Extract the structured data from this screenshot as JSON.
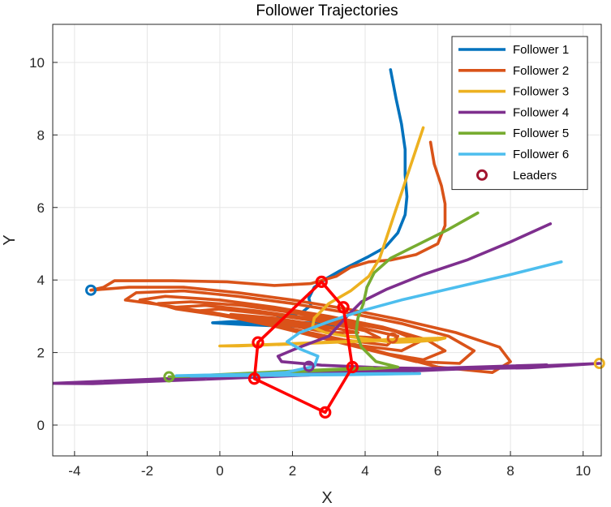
{
  "chart_data": {
    "type": "line",
    "title": "Follower Trajectories",
    "xlabel": "X",
    "ylabel": "Y",
    "xlim": [
      -4.6,
      10.5
    ],
    "ylim": [
      -0.85,
      11.05
    ],
    "xticks": [
      -4,
      -2,
      0,
      2,
      4,
      6,
      8,
      10
    ],
    "yticks": [
      0,
      2,
      4,
      6,
      8,
      10
    ],
    "grid": true,
    "legend_position": "top-right",
    "series": [
      {
        "name": "Follower 1",
        "color": "#0072BD",
        "start": [
          -3.55,
          3.72
        ],
        "points": [
          [
            4.7,
            9.8
          ],
          [
            4.85,
            9.0
          ],
          [
            5.0,
            8.3
          ],
          [
            5.1,
            7.6
          ],
          [
            5.1,
            6.9
          ],
          [
            5.15,
            6.3
          ],
          [
            5.1,
            5.8
          ],
          [
            4.9,
            5.3
          ],
          [
            4.55,
            4.9
          ],
          [
            4.1,
            4.65
          ],
          [
            3.7,
            4.45
          ],
          [
            3.3,
            4.25
          ],
          [
            2.95,
            4.05
          ],
          [
            2.6,
            3.8
          ],
          [
            2.45,
            3.5
          ],
          [
            2.5,
            3.3
          ],
          [
            2.25,
            3.1
          ],
          [
            1.6,
            2.95
          ],
          [
            0.9,
            2.85
          ],
          [
            0.3,
            2.85
          ],
          [
            -0.2,
            2.82
          ],
          [
            0.5,
            2.78
          ],
          [
            1.4,
            2.74
          ],
          [
            2.4,
            2.72
          ],
          [
            3.2,
            2.76
          ],
          [
            2.4,
            2.82
          ],
          [
            1.5,
            2.86
          ],
          [
            0.6,
            2.86
          ],
          [
            1.5,
            2.8
          ],
          [
            2.5,
            2.76
          ]
        ]
      },
      {
        "name": "Follower 2",
        "color": "#D95319",
        "start": [
          -3.55,
          3.72
        ],
        "points": [
          [
            5.8,
            7.8
          ],
          [
            5.9,
            7.2
          ],
          [
            6.1,
            6.6
          ],
          [
            6.2,
            6.1
          ],
          [
            6.2,
            5.5
          ],
          [
            6.0,
            5.0
          ],
          [
            5.4,
            4.7
          ],
          [
            4.7,
            4.55
          ],
          [
            4.1,
            4.5
          ],
          [
            3.6,
            4.35
          ],
          [
            3.2,
            4.1
          ],
          [
            2.5,
            3.9
          ],
          [
            1.5,
            3.85
          ],
          [
            0.2,
            3.95
          ],
          [
            -1.3,
            3.98
          ],
          [
            -2.9,
            3.98
          ],
          [
            -3.2,
            3.8
          ],
          [
            -3.55,
            3.72
          ],
          [
            -3.55,
            3.72
          ],
          [
            -2.5,
            3.8
          ],
          [
            -1.0,
            3.8
          ],
          [
            0.5,
            3.65
          ],
          [
            2.0,
            3.45
          ],
          [
            3.5,
            3.2
          ],
          [
            5.0,
            2.9
          ],
          [
            6.5,
            2.55
          ],
          [
            7.7,
            2.15
          ],
          [
            8.0,
            1.75
          ],
          [
            7.5,
            1.45
          ],
          [
            6.0,
            1.6
          ],
          [
            4.5,
            2.0
          ],
          [
            3.0,
            2.4
          ],
          [
            1.5,
            2.75
          ],
          [
            0.0,
            3.05
          ],
          [
            -1.5,
            3.3
          ],
          [
            -2.6,
            3.45
          ],
          [
            -2.3,
            3.65
          ],
          [
            -1.0,
            3.7
          ],
          [
            0.5,
            3.55
          ],
          [
            2.0,
            3.35
          ],
          [
            3.5,
            3.1
          ],
          [
            5.0,
            2.8
          ],
          [
            6.3,
            2.45
          ],
          [
            7.0,
            2.05
          ],
          [
            6.6,
            1.7
          ],
          [
            5.4,
            1.75
          ],
          [
            4.0,
            2.1
          ],
          [
            2.6,
            2.5
          ],
          [
            1.2,
            2.85
          ],
          [
            -0.2,
            3.1
          ],
          [
            -1.6,
            3.3
          ],
          [
            -2.2,
            3.45
          ],
          [
            -1.5,
            3.55
          ],
          [
            0.0,
            3.45
          ],
          [
            1.5,
            3.25
          ],
          [
            3.0,
            3.0
          ],
          [
            4.5,
            2.7
          ],
          [
            5.7,
            2.35
          ],
          [
            6.2,
            2.05
          ],
          [
            5.6,
            1.8
          ],
          [
            4.4,
            2.0
          ],
          [
            3.0,
            2.35
          ],
          [
            1.6,
            2.7
          ],
          [
            0.2,
            3.0
          ],
          [
            -1.2,
            3.2
          ],
          [
            -1.7,
            3.35
          ],
          [
            -0.8,
            3.4
          ],
          [
            0.6,
            3.3
          ],
          [
            2.0,
            3.1
          ],
          [
            3.4,
            2.85
          ],
          [
            4.8,
            2.6
          ],
          [
            5.5,
            2.3
          ],
          [
            5.0,
            2.05
          ],
          [
            3.8,
            2.2
          ],
          [
            2.4,
            2.55
          ],
          [
            1.0,
            2.85
          ],
          [
            -0.4,
            3.1
          ],
          [
            -1.2,
            3.25
          ],
          [
            -0.4,
            3.3
          ],
          [
            1.0,
            3.15
          ],
          [
            2.4,
            2.95
          ],
          [
            3.8,
            2.7
          ],
          [
            4.9,
            2.45
          ],
          [
            4.6,
            2.2
          ],
          [
            3.4,
            2.35
          ],
          [
            2.0,
            2.65
          ],
          [
            0.6,
            2.95
          ],
          [
            -0.6,
            3.15
          ],
          [
            0.0,
            3.2
          ],
          [
            1.4,
            3.05
          ],
          [
            2.8,
            2.85
          ],
          [
            4.0,
            2.6
          ],
          [
            4.4,
            2.4
          ],
          [
            3.5,
            2.45
          ],
          [
            2.2,
            2.7
          ],
          [
            0.9,
            2.95
          ],
          [
            0.3,
            3.05
          ],
          [
            1.5,
            2.95
          ],
          [
            2.8,
            2.75
          ],
          [
            3.8,
            2.55
          ],
          [
            3.2,
            2.55
          ],
          [
            2.0,
            2.75
          ],
          [
            1.2,
            2.9
          ],
          [
            2.2,
            2.8
          ],
          [
            3.2,
            2.65
          ],
          [
            2.5,
            2.7
          ],
          [
            2.0,
            2.75
          ]
        ]
      },
      {
        "name": "Follower 3",
        "color": "#EDB120",
        "start": [
          10.45,
          1.7
        ],
        "points": [
          [
            5.6,
            8.2
          ],
          [
            5.4,
            7.6
          ],
          [
            5.2,
            7.0
          ],
          [
            5.0,
            6.4
          ],
          [
            4.8,
            5.8
          ],
          [
            4.6,
            5.2
          ],
          [
            4.4,
            4.6
          ],
          [
            4.1,
            4.1
          ],
          [
            3.6,
            3.7
          ],
          [
            3.0,
            3.35
          ],
          [
            2.6,
            2.95
          ],
          [
            2.55,
            2.7
          ],
          [
            2.9,
            2.55
          ],
          [
            3.5,
            2.45
          ],
          [
            4.2,
            2.35
          ],
          [
            4.8,
            2.28
          ],
          [
            5.4,
            2.3
          ],
          [
            6.0,
            2.35
          ],
          [
            6.2,
            2.4
          ],
          [
            5.5,
            2.38
          ],
          [
            4.5,
            2.34
          ],
          [
            3.5,
            2.3
          ],
          [
            2.5,
            2.26
          ],
          [
            1.5,
            2.22
          ],
          [
            0.5,
            2.18
          ],
          [
            0.0,
            2.18
          ],
          [
            0.8,
            2.2
          ],
          [
            1.8,
            2.24
          ],
          [
            2.8,
            2.28
          ],
          [
            3.8,
            2.32
          ],
          [
            4.7,
            2.36
          ],
          [
            5.3,
            2.38
          ],
          [
            4.6,
            2.34
          ],
          [
            3.6,
            2.3
          ],
          [
            2.6,
            2.26
          ],
          [
            1.6,
            2.22
          ],
          [
            2.5,
            2.26
          ],
          [
            3.5,
            2.3
          ]
        ]
      },
      {
        "name": "Follower 4",
        "color": "#7E2F8E",
        "start": [
          -4.6,
          1.15
        ],
        "points": [
          [
            9.1,
            5.55
          ],
          [
            8.0,
            5.05
          ],
          [
            6.8,
            4.55
          ],
          [
            5.6,
            4.15
          ],
          [
            4.6,
            3.75
          ],
          [
            3.9,
            3.4
          ],
          [
            3.5,
            3.0
          ],
          [
            3.0,
            2.45
          ],
          [
            2.2,
            2.15
          ],
          [
            1.6,
            1.9
          ],
          [
            1.7,
            1.75
          ],
          [
            2.8,
            1.65
          ],
          [
            4.5,
            1.58
          ],
          [
            6.5,
            1.55
          ],
          [
            8.5,
            1.58
          ],
          [
            10.45,
            1.7
          ],
          [
            8.5,
            1.62
          ],
          [
            6.0,
            1.52
          ],
          [
            3.5,
            1.42
          ],
          [
            1.0,
            1.32
          ],
          [
            -1.5,
            1.22
          ],
          [
            -3.5,
            1.14
          ],
          [
            -4.6,
            1.15
          ],
          [
            -3.0,
            1.22
          ],
          [
            -0.5,
            1.32
          ],
          [
            2.0,
            1.42
          ],
          [
            4.5,
            1.52
          ],
          [
            7.0,
            1.6
          ],
          [
            9.0,
            1.66
          ],
          [
            7.0,
            1.58
          ],
          [
            4.5,
            1.48
          ],
          [
            2.0,
            1.38
          ],
          [
            -0.5,
            1.28
          ],
          [
            -2.8,
            1.2
          ],
          [
            -0.5,
            1.3
          ],
          [
            2.0,
            1.4
          ],
          [
            4.5,
            1.5
          ],
          [
            6.5,
            1.56
          ]
        ]
      },
      {
        "name": "Follower 5",
        "color": "#77AC30",
        "start": [
          -1.4,
          1.33
        ],
        "points": [
          [
            7.1,
            5.85
          ],
          [
            6.3,
            5.4
          ],
          [
            5.4,
            4.95
          ],
          [
            4.7,
            4.6
          ],
          [
            4.25,
            4.2
          ],
          [
            4.05,
            3.8
          ],
          [
            3.95,
            3.35
          ],
          [
            3.8,
            2.95
          ],
          [
            3.75,
            2.55
          ],
          [
            3.9,
            2.15
          ],
          [
            4.3,
            1.75
          ],
          [
            4.9,
            1.6
          ],
          [
            4.3,
            1.56
          ],
          [
            3.2,
            1.52
          ],
          [
            2.0,
            1.48
          ],
          [
            0.8,
            1.42
          ],
          [
            -0.4,
            1.36
          ],
          [
            -1.4,
            1.33
          ],
          [
            -0.5,
            1.37
          ],
          [
            0.8,
            1.43
          ],
          [
            2.0,
            1.49
          ],
          [
            3.2,
            1.54
          ],
          [
            4.2,
            1.58
          ],
          [
            3.2,
            1.52
          ],
          [
            2.0,
            1.47
          ]
        ]
      },
      {
        "name": "Follower 6",
        "color": "#4DBEEE",
        "start": [
          -1.4,
          1.33
        ],
        "points": [
          [
            9.4,
            4.5
          ],
          [
            8.0,
            4.15
          ],
          [
            6.5,
            3.8
          ],
          [
            5.0,
            3.45
          ],
          [
            3.9,
            3.15
          ],
          [
            3.0,
            2.85
          ],
          [
            2.2,
            2.55
          ],
          [
            1.85,
            2.3
          ],
          [
            2.2,
            2.1
          ],
          [
            2.7,
            1.9
          ],
          [
            2.6,
            1.62
          ],
          [
            1.8,
            1.45
          ],
          [
            0.8,
            1.4
          ],
          [
            -0.3,
            1.38
          ],
          [
            -1.2,
            1.36
          ],
          [
            0.5,
            1.38
          ],
          [
            2.5,
            1.4
          ],
          [
            4.5,
            1.42
          ],
          [
            5.5,
            1.42
          ],
          [
            4.0,
            1.4
          ],
          [
            2.0,
            1.38
          ],
          [
            0.0,
            1.36
          ],
          [
            -0.8,
            1.35
          ],
          [
            1.0,
            1.37
          ],
          [
            3.0,
            1.39
          ],
          [
            4.8,
            1.41
          ],
          [
            3.5,
            1.39
          ],
          [
            1.5,
            1.37
          ]
        ]
      }
    ],
    "leaders": {
      "name": "Leaders",
      "marker_color": "#A2142F",
      "points": [
        [
          2.8,
          3.95
        ],
        [
          3.4,
          3.25
        ],
        [
          3.65,
          1.6
        ],
        [
          2.9,
          0.35
        ],
        [
          0.95,
          1.28
        ],
        [
          1.05,
          2.28
        ]
      ]
    },
    "extra_markers": [
      {
        "point": [
          -3.55,
          3.72
        ],
        "color": "#0072BD"
      },
      {
        "point": [
          10.45,
          1.7
        ],
        "color": "#EDB120"
      },
      {
        "point": [
          -1.4,
          1.33
        ],
        "color": "#77AC30"
      },
      {
        "point": [
          2.45,
          1.62
        ],
        "color": "#7E2F8E"
      },
      {
        "point": [
          4.75,
          2.4
        ],
        "color": "#D95319"
      }
    ]
  }
}
